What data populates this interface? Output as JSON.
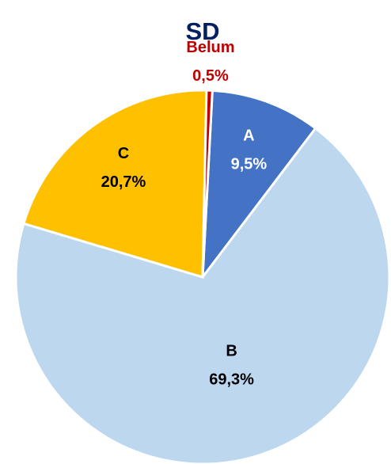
{
  "chart_data": {
    "type": "pie",
    "title": "SD",
    "categories": [
      "A",
      "B",
      "C",
      "Belum"
    ],
    "values": [
      9.5,
      69.3,
      20.7,
      0.5
    ],
    "value_labels": [
      "9,5%",
      "69,3%",
      "20,7%",
      "0,5%"
    ],
    "colors": [
      "#4472c4",
      "#bdd7ee",
      "#ffc000",
      "#c00000"
    ],
    "label_colors": [
      "#ffffff",
      "#000000",
      "#000000",
      "#c00000"
    ]
  }
}
